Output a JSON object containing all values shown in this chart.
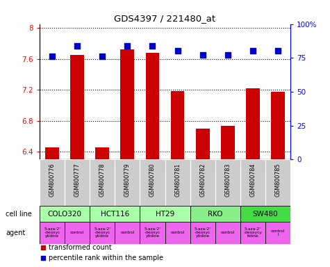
{
  "title": "GDS4397 / 221480_at",
  "samples": [
    "GSM800776",
    "GSM800777",
    "GSM800778",
    "GSM800779",
    "GSM800780",
    "GSM800781",
    "GSM800782",
    "GSM800783",
    "GSM800784",
    "GSM800785"
  ],
  "transformed_count": [
    6.45,
    7.65,
    6.45,
    7.72,
    7.68,
    7.18,
    6.7,
    6.73,
    7.22,
    7.17
  ],
  "percentile_rank": [
    76,
    84,
    76,
    84,
    84,
    80,
    77,
    77,
    80,
    80
  ],
  "cell_lines": [
    {
      "label": "COLO320",
      "span": [
        0,
        2
      ],
      "color": "#aaffaa"
    },
    {
      "label": "HCT116",
      "span": [
        2,
        4
      ],
      "color": "#aaffaa"
    },
    {
      "label": "HT29",
      "span": [
        4,
        6
      ],
      "color": "#aaffaa"
    },
    {
      "label": "RKO",
      "span": [
        6,
        8
      ],
      "color": "#88ee88"
    },
    {
      "label": "SW480",
      "span": [
        8,
        10
      ],
      "color": "#44dd44"
    }
  ],
  "agents": [
    {
      "label": "5-aza-2'\n-deoxyc\nytidine",
      "span": [
        0,
        1
      ],
      "color": "#ee66ee"
    },
    {
      "label": "control",
      "span": [
        1,
        2
      ],
      "color": "#ee66ee"
    },
    {
      "label": "5-aza-2'\n-deoxyc\nytidine",
      "span": [
        2,
        3
      ],
      "color": "#ee66ee"
    },
    {
      "label": "control",
      "span": [
        3,
        4
      ],
      "color": "#ee66ee"
    },
    {
      "label": "5-aza-2'\n-deoxyc\nytidine",
      "span": [
        4,
        5
      ],
      "color": "#ee66ee"
    },
    {
      "label": "control",
      "span": [
        5,
        6
      ],
      "color": "#ee66ee"
    },
    {
      "label": "5-aza-2'\n-deoxyc\nytidine",
      "span": [
        6,
        7
      ],
      "color": "#ee66ee"
    },
    {
      "label": "control",
      "span": [
        7,
        8
      ],
      "color": "#ee66ee"
    },
    {
      "label": "5-aza-2'\n-deoxycy\ntidine",
      "span": [
        8,
        9
      ],
      "color": "#ee66ee"
    },
    {
      "label": "control\nl",
      "span": [
        9,
        10
      ],
      "color": "#ee66ee"
    }
  ],
  "bar_color": "#cc0000",
  "dot_color": "#0000cc",
  "ylim_left": [
    6.3,
    8.05
  ],
  "ylim_right": [
    0,
    100
  ],
  "yticks_left": [
    6.4,
    6.8,
    7.2,
    7.6,
    8.0
  ],
  "ytick_labels_left": [
    "6.4",
    "6.8",
    "7.2",
    "7.6",
    "8"
  ],
  "yticks_right": [
    0,
    25,
    50,
    75,
    100
  ],
  "ytick_labels_right": [
    "0",
    "25",
    "50",
    "75",
    "100%"
  ],
  "bar_width": 0.55,
  "dot_size": 28,
  "bg_color": "#ffffff",
  "sample_bg": "#cccccc"
}
